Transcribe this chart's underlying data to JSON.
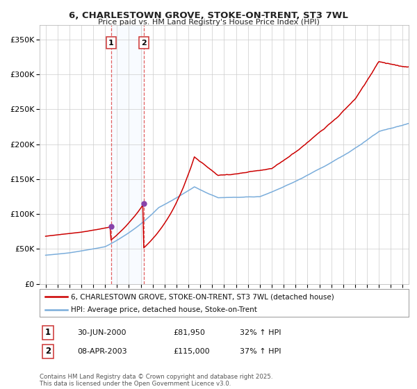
{
  "title": "6, CHARLESTOWN GROVE, STOKE-ON-TRENT, ST3 7WL",
  "subtitle": "Price paid vs. HM Land Registry's House Price Index (HPI)",
  "ylim": [
    0,
    370000
  ],
  "yticks": [
    0,
    50000,
    100000,
    150000,
    200000,
    250000,
    300000,
    350000
  ],
  "xlim_start": 1994.5,
  "xlim_end": 2025.5,
  "purchase1_date": 2000.5,
  "purchase1_price": 81950,
  "purchase2_date": 2003.27,
  "purchase2_price": 115000,
  "line1_color": "#cc0000",
  "line2_color": "#7aaddb",
  "marker_color": "#8844aa",
  "vline_color": "#dd4444",
  "span_color": "#ddeeff",
  "annotation_box_facecolor": "#ffffff",
  "annotation_box_edgecolor": "#cc3333",
  "legend_line1": "6, CHARLESTOWN GROVE, STOKE-ON-TRENT, ST3 7WL (detached house)",
  "legend_line2": "HPI: Average price, detached house, Stoke-on-Trent",
  "row1_label": "1",
  "row1_date": "30-JUN-2000",
  "row1_price": "£81,950",
  "row1_pct": "32% ↑ HPI",
  "row2_label": "2",
  "row2_date": "08-APR-2003",
  "row2_price": "£115,000",
  "row2_pct": "37% ↑ HPI",
  "footer": "Contains HM Land Registry data © Crown copyright and database right 2025.\nThis data is licensed under the Open Government Licence v3.0.",
  "background_color": "#ffffff",
  "grid_color": "#cccccc"
}
